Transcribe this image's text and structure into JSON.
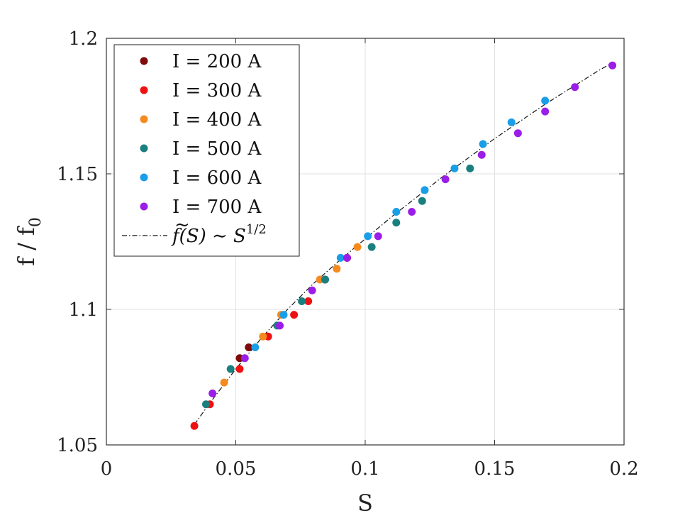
{
  "chart_data": {
    "type": "scatter",
    "xlabel": "S",
    "ylabel": "f / f",
    "ylabel_sub": "0",
    "xlim": [
      0,
      0.2
    ],
    "ylim": [
      1.05,
      1.2
    ],
    "xticks": [
      0,
      0.05,
      0.1,
      0.15,
      0.2
    ],
    "xtick_labels": [
      "0",
      "0.05",
      "0.1",
      "0.15",
      "0.2"
    ],
    "yticks": [
      1.05,
      1.1,
      1.15,
      1.2
    ],
    "ytick_labels": [
      "1.05",
      "1.1",
      "1.15",
      "1.2"
    ],
    "grid": true,
    "legend_position": "top-left",
    "series": [
      {
        "name": "I = 200 A",
        "color": "#7f0a0a",
        "x": [
          0.0515,
          0.055,
          0.0845,
          0.093
        ],
        "y": [
          1.082,
          1.086,
          1.111,
          1.119
        ]
      },
      {
        "name": "I = 300 A",
        "color": "#ee1111",
        "x": [
          0.034,
          0.04,
          0.0515,
          0.0625,
          0.0725,
          0.078
        ],
        "y": [
          1.057,
          1.065,
          1.078,
          1.09,
          1.098,
          1.103
        ]
      },
      {
        "name": "I = 400 A",
        "color": "#f58a1f",
        "x": [
          0.0455,
          0.0605,
          0.0675,
          0.0825,
          0.089,
          0.097
        ],
        "y": [
          1.073,
          1.09,
          1.098,
          1.111,
          1.115,
          1.123
        ]
      },
      {
        "name": "I = 500 A",
        "color": "#1a7f7f",
        "x": [
          0.0385,
          0.048,
          0.066,
          0.0755,
          0.0845,
          0.1025,
          0.112,
          0.122,
          0.1405
        ],
        "y": [
          1.065,
          1.078,
          1.094,
          1.103,
          1.111,
          1.123,
          1.132,
          1.14,
          1.152
        ]
      },
      {
        "name": "I = 600 A",
        "color": "#1a9ee8",
        "x": [
          0.0575,
          0.0685,
          0.0905,
          0.101,
          0.112,
          0.123,
          0.1345,
          0.1455,
          0.1565,
          0.1695
        ],
        "y": [
          1.086,
          1.098,
          1.119,
          1.127,
          1.136,
          1.144,
          1.152,
          1.161,
          1.169,
          1.177
        ]
      },
      {
        "name": "I = 700 A",
        "color": "#9b1ee8",
        "x": [
          0.041,
          0.0535,
          0.067,
          0.0795,
          0.093,
          0.105,
          0.118,
          0.131,
          0.145,
          0.159,
          0.1695,
          0.181,
          0.1955
        ],
        "y": [
          1.069,
          1.082,
          1.094,
          1.107,
          1.119,
          1.127,
          1.136,
          1.148,
          1.157,
          1.165,
          1.173,
          1.182,
          1.19
        ]
      }
    ],
    "fit": {
      "name": "f̃(S) ~ S^1/2",
      "legend_f": "f",
      "legend_tilde": "~",
      "legend_arg": "(S) ∼ S",
      "legend_exp": "1/2",
      "color": "#111111",
      "style": "dash-dot",
      "x": [
        0.034,
        0.04,
        0.05,
        0.06,
        0.07,
        0.08,
        0.09,
        0.1,
        0.11,
        0.12,
        0.13,
        0.14,
        0.15,
        0.16,
        0.17,
        0.18,
        0.19,
        0.1955
      ],
      "y": [
        1.0575,
        1.0655,
        1.078,
        1.0895,
        1.1,
        1.1095,
        1.118,
        1.126,
        1.134,
        1.1415,
        1.149,
        1.156,
        1.163,
        1.1695,
        1.176,
        1.182,
        1.188,
        1.191
      ]
    }
  }
}
